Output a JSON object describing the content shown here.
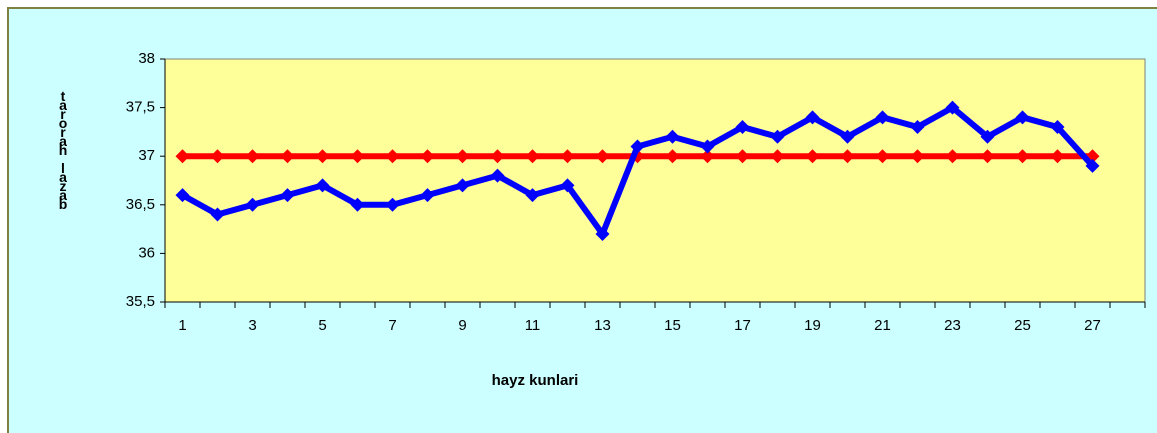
{
  "chart_data": {
    "type": "line",
    "ylabel": "tarorah lazab",
    "xlabel": "hayz kunlari",
    "categories": [
      "1",
      null,
      "3",
      null,
      "5",
      null,
      "7",
      null,
      "9",
      null,
      "11",
      null,
      "13",
      null,
      "15",
      null,
      "17",
      null,
      "19",
      null,
      "21",
      null,
      "23",
      null,
      "25",
      null,
      "27",
      null
    ],
    "series": [
      {
        "color": "#0000ff",
        "values": [
          36.6,
          36.4,
          36.5,
          36.6,
          36.7,
          36.5,
          36.5,
          36.6,
          36.7,
          36.8,
          36.6,
          36.7,
          36.2,
          37.1,
          37.2,
          37.1,
          37.3,
          37.2,
          37.4,
          37.2,
          37.4,
          37.3,
          37.5,
          37.2,
          37.4,
          37.3,
          36.9,
          null
        ]
      },
      {
        "color": "#ff0000",
        "values": [
          37,
          37,
          37,
          37,
          37,
          37,
          37,
          37,
          37,
          37,
          37,
          37,
          37,
          37,
          37,
          37,
          37,
          37,
          37,
          37,
          37,
          37,
          37,
          37,
          37,
          37,
          37,
          null
        ]
      }
    ],
    "ylim": [
      35.5,
      38
    ],
    "yticks": [
      {
        "value": 35.5,
        "label": "35,5"
      },
      36,
      {
        "value": 36.5,
        "label": "36,5"
      },
      37,
      {
        "value": 37.5,
        "label": "37,5"
      },
      38
    ],
    "plot_background": "#ffff99",
    "grid": false
  }
}
